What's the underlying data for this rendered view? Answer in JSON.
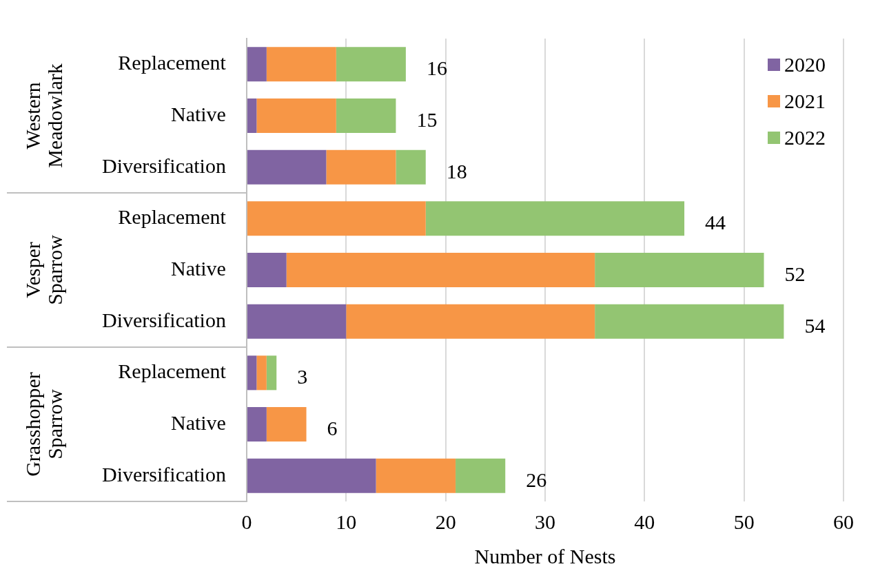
{
  "chart_data": {
    "type": "bar",
    "orientation": "horizontal",
    "stacked": true,
    "xlabel": "Number of Nests",
    "categories": [
      "Replacement",
      "Native",
      "Diversification",
      "Replacement",
      "Native",
      "Diversification",
      "Replacement",
      "Native",
      "Diversification"
    ],
    "annotations": [
      "Western Meadowlark",
      "Vesper Sparrow",
      "Grasshopper Sparrow"
    ],
    "series": [
      {
        "name": "2020",
        "color": "#8064a2",
        "values": [
          2,
          1,
          8,
          0,
          4,
          10,
          1,
          2,
          13
        ]
      },
      {
        "name": "2021",
        "color": "#f79646",
        "values": [
          7,
          8,
          7,
          18,
          31,
          25,
          1,
          4,
          8
        ]
      },
      {
        "name": "2022",
        "color": "#93c572",
        "values": [
          7,
          6,
          3,
          26,
          17,
          19,
          1,
          0,
          5
        ]
      }
    ],
    "totals": [
      "16",
      "15",
      "18",
      "44",
      "52",
      "54",
      "3",
      "6",
      "26"
    ],
    "xlim": [
      0,
      60
    ],
    "xticks": [
      0,
      10,
      20,
      30,
      40,
      50,
      60
    ],
    "grid": "x",
    "legend": "top right"
  }
}
